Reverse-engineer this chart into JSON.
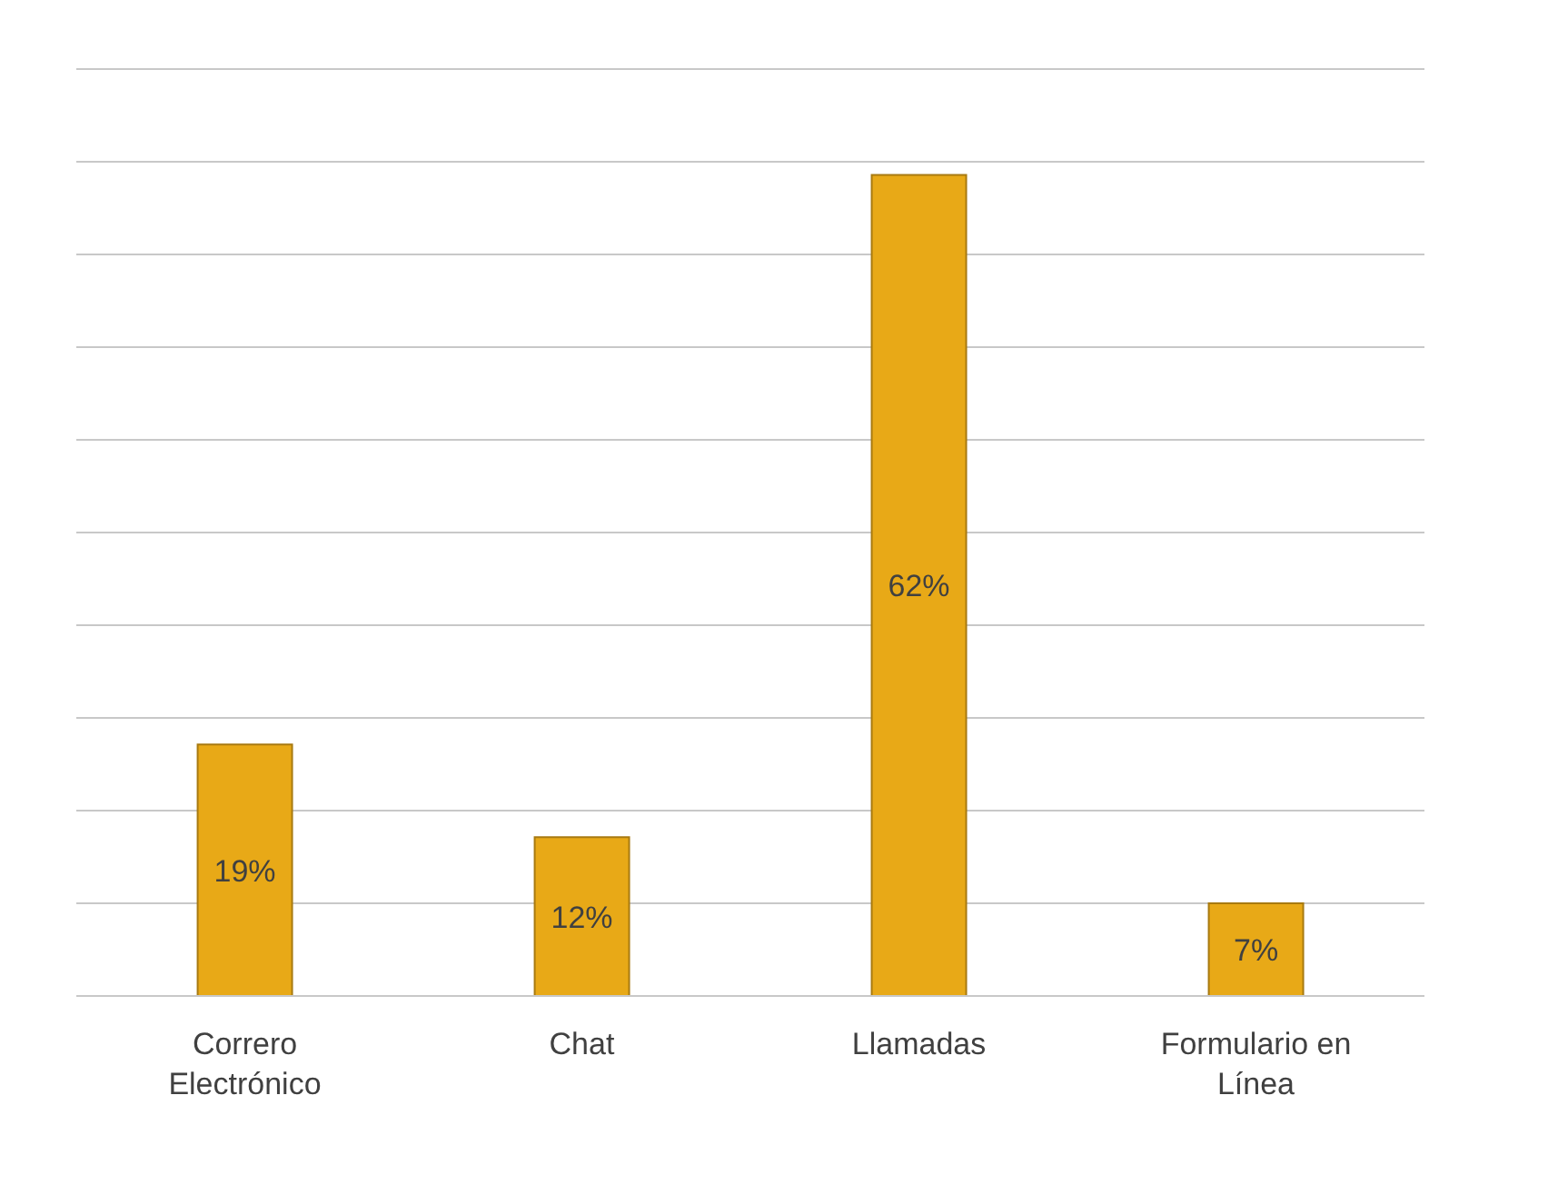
{
  "chart_data": {
    "type": "bar",
    "categories": [
      "Correro Electrónico",
      "Chat",
      "Llamadas",
      "Formulario en Línea"
    ],
    "values": [
      19,
      12,
      62,
      7
    ],
    "value_labels": [
      "19%",
      "12%",
      "62%",
      "7%"
    ],
    "color": "#e8a917",
    "grid": "y",
    "tick_labels": "x"
  }
}
